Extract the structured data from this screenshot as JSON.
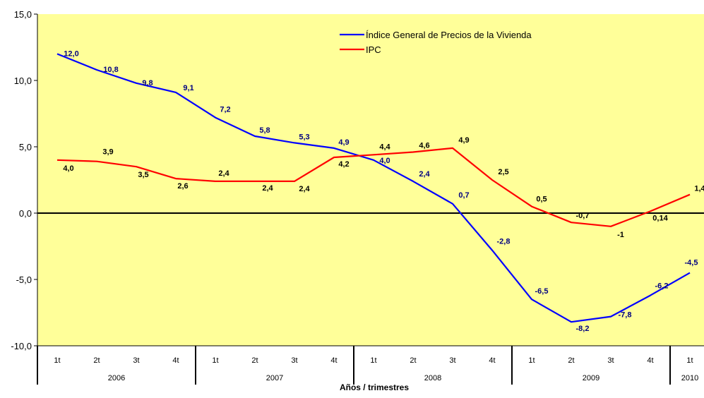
{
  "chart_data": {
    "type": "line",
    "xlabel": "Años / trimestres",
    "ylabel": "",
    "ylim": [
      -10,
      15
    ],
    "ytick_step": 5,
    "ytick_labels": [
      "-10,0",
      "-5,0",
      "0,0",
      "5,0",
      "10,0",
      "15,0"
    ],
    "grid": false,
    "background_color": "#FFFF99",
    "zero_line": true,
    "legend_position": "top-center",
    "categories": [
      "1t",
      "2t",
      "3t",
      "4t",
      "1t",
      "2t",
      "3t",
      "4t",
      "1t",
      "2t",
      "3t",
      "4t",
      "1t",
      "2t",
      "3t",
      "4t",
      "1t"
    ],
    "years": [
      {
        "label": "2006",
        "span": 4
      },
      {
        "label": "2007",
        "span": 4
      },
      {
        "label": "2008",
        "span": 4
      },
      {
        "label": "2009",
        "span": 4
      },
      {
        "label": "2010",
        "span": 1
      }
    ],
    "series": [
      {
        "name": "Índice General de Precios de la Vivienda",
        "color": "#0000FF",
        "label_color": "#000080",
        "values": [
          12.0,
          10.8,
          9.8,
          9.1,
          7.2,
          5.8,
          5.3,
          4.9,
          4.0,
          2.4,
          0.7,
          -2.8,
          -6.5,
          -8.2,
          -7.8,
          -6.2,
          -4.5
        ],
        "labels": [
          "12,0",
          "10,8",
          "9,8",
          "9,1",
          "7,2",
          "5,8",
          "5,3",
          "4,9",
          "4,0",
          "2,4",
          "0,7",
          "-2,8",
          "-6,5",
          "-8,2",
          "-7,8",
          "-6,2",
          "-4,5"
        ]
      },
      {
        "name": "IPC",
        "color": "#FF0000",
        "label_color": "#000000",
        "values": [
          4.0,
          3.9,
          3.5,
          2.6,
          2.4,
          2.4,
          2.4,
          4.2,
          4.4,
          4.6,
          4.9,
          2.5,
          0.5,
          -0.7,
          -1.0,
          0.14,
          1.4
        ],
        "labels": [
          "4,0",
          "3,9",
          "3,5",
          "2,6",
          "2,4",
          "2,4",
          "2,4",
          "4,2",
          "4,4",
          "4,6",
          "4,9",
          "2,5",
          "0,5",
          "-0,7",
          "-1",
          "0,14",
          "1,4"
        ]
      }
    ]
  }
}
